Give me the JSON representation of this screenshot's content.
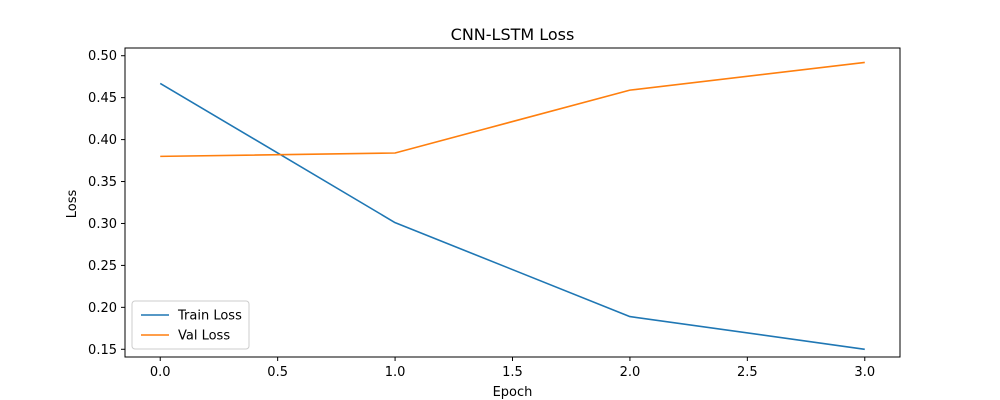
{
  "chart_data": {
    "type": "line",
    "title": "CNN-LSTM Loss",
    "xlabel": "Epoch",
    "ylabel": "Loss",
    "xlim": [
      -0.15,
      3.15
    ],
    "ylim": [
      0.1408,
      0.5092
    ],
    "xticks": [
      0.0,
      0.5,
      1.0,
      1.5,
      2.0,
      2.5,
      3.0
    ],
    "xtick_labels": [
      "0.0",
      "0.5",
      "1.0",
      "1.5",
      "2.0",
      "2.5",
      "3.0"
    ],
    "yticks": [
      0.15,
      0.2,
      0.25,
      0.3,
      0.35,
      0.4,
      0.45,
      0.5
    ],
    "ytick_labels": [
      "0.15",
      "0.20",
      "0.25",
      "0.30",
      "0.35",
      "0.40",
      "0.45",
      "0.50"
    ],
    "grid": false,
    "legend_position": "lower-left",
    "x": [
      0,
      1,
      2,
      3
    ],
    "series": [
      {
        "name": "Train Loss",
        "values": [
          0.467,
          0.301,
          0.189,
          0.15
        ],
        "color": "#1f77b4"
      },
      {
        "name": "Val Loss",
        "values": [
          0.38,
          0.384,
          0.459,
          0.492
        ],
        "color": "#ff7f0e"
      }
    ]
  }
}
